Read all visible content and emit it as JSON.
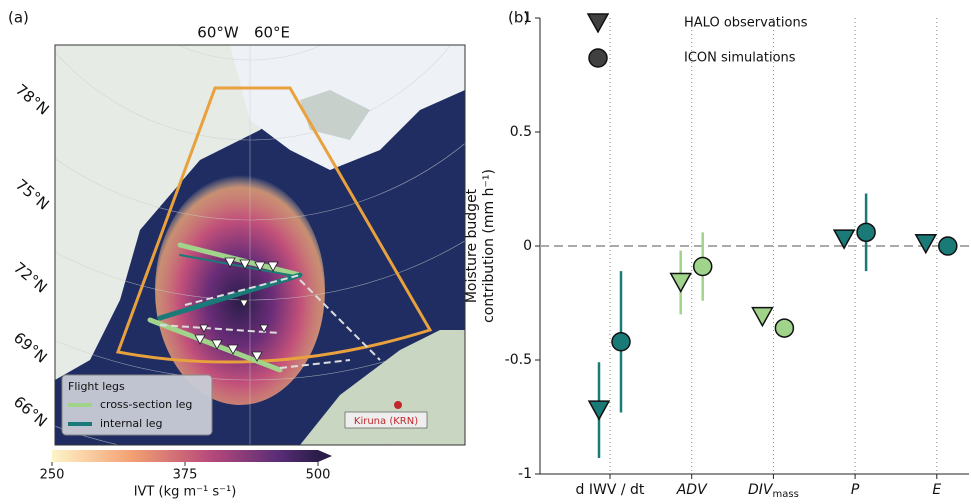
{
  "chart_data": {
    "type": "errorpoint",
    "panel_label": "(b)",
    "ylabel": [
      "Moisture budget",
      "contribution (mm h⁻¹)"
    ],
    "categories": [
      "d IWV / dt",
      "ADV",
      "DIV",
      "P",
      "E"
    ],
    "category_subscripts": [
      null,
      null,
      "mass",
      null,
      null
    ],
    "series": [
      {
        "name": "HALO observations",
        "marker": "triangle",
        "legend_color": "#404040",
        "colors": [
          "#1a7a78",
          "#9fd48a",
          "#9fd48a",
          "#1a7a78",
          "#1a7a78"
        ],
        "values": [
          -0.72,
          -0.16,
          -0.31,
          0.03,
          0.01
        ],
        "errors": [
          0.21,
          0.14,
          0.03,
          0.02,
          0.01
        ]
      },
      {
        "name": "ICON simulations",
        "marker": "circle",
        "legend_color": "#404040",
        "colors": [
          "#1a7a78",
          "#9fd48a",
          "#9fd48a",
          "#1a7a78",
          "#1a7a78"
        ],
        "values": [
          -0.42,
          -0.09,
          -0.36,
          0.06,
          0.0
        ],
        "errors": [
          0.31,
          0.15,
          0.04,
          0.17,
          0.01
        ]
      }
    ],
    "ylim": [
      -1,
      1
    ],
    "yticks": [
      -1,
      -0.5,
      0,
      0.5,
      1
    ],
    "hline": 0,
    "legend": "upper left",
    "category_grid": true
  },
  "map": {
    "panel_label": "(a)",
    "lon_labels": [
      "60°W",
      "60°E"
    ],
    "lat_labels": [
      "78°N",
      "75°N",
      "72°N",
      "69°N",
      "66°N"
    ],
    "legend_title": "Flight legs",
    "legend_items": [
      "cross-section leg",
      "internal leg"
    ],
    "station": "Kiruna (KRN)",
    "colorbar_label": "IVT (kg m⁻¹ s⁻¹)",
    "colorbar_ticks": [
      250,
      375,
      500
    ]
  }
}
